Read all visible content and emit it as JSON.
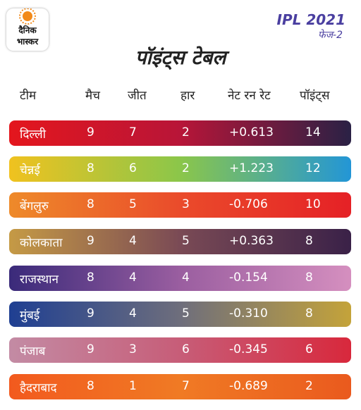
{
  "logo": {
    "line1": "दैनिक",
    "line2": "भास्कर"
  },
  "badge": {
    "line1": "IPL 2021",
    "line2": "फेज-2"
  },
  "title": "पॉइंट्स टेबल",
  "columns": {
    "team": "टीम",
    "matches": "मैच",
    "won": "जीत",
    "lost": "हार",
    "nrr": "नेट रन रेट",
    "points": "पॉइंट्स"
  },
  "rows": [
    {
      "team": "दिल्ली",
      "matches": "9",
      "won": "7",
      "lost": "2",
      "nrr": "+0.613",
      "points": "14",
      "colors": [
        "#e4161d",
        "#b81538",
        "#2a2145"
      ]
    },
    {
      "team": "चेन्नई",
      "matches": "8",
      "won": "6",
      "lost": "2",
      "nrr": "+1.223",
      "points": "12",
      "colors": [
        "#f0c21f",
        "#8bc64a",
        "#2396d6"
      ]
    },
    {
      "team": "बेंगलुरु",
      "matches": "8",
      "won": "5",
      "lost": "3",
      "nrr": "-0.706",
      "points": "10",
      "colors": [
        "#ee8a2a",
        "#ea4b2b",
        "#e52126"
      ]
    },
    {
      "team": "कोलकाता",
      "matches": "9",
      "won": "4",
      "lost": "5",
      "nrr": "+0.363",
      "points": "8",
      "colors": [
        "#c59a45",
        "#7a4a55",
        "#3a2148"
      ]
    },
    {
      "team": "राजस्थान",
      "matches": "8",
      "won": "4",
      "lost": "4",
      "nrr": "-0.154",
      "points": "8",
      "colors": [
        "#3a2a7a",
        "#9a5ea0",
        "#d58fbf"
      ]
    },
    {
      "team": "मुंबई",
      "matches": "9",
      "won": "4",
      "lost": "5",
      "nrr": "-0.310",
      "points": "8",
      "colors": [
        "#1f3f92",
        "#6e6e7c",
        "#c4a33a"
      ]
    },
    {
      "team": "पंजाब",
      "matches": "9",
      "won": "3",
      "lost": "6",
      "nrr": "-0.345",
      "points": "6",
      "colors": [
        "#c38ba4",
        "#c75d78",
        "#d8283c"
      ]
    },
    {
      "team": "हैदराबाद",
      "matches": "8",
      "won": "1",
      "lost": "7",
      "nrr": "-0.689",
      "points": "2",
      "colors": [
        "#f25a1e",
        "#f07a24",
        "#ea5a1e"
      ]
    }
  ]
}
